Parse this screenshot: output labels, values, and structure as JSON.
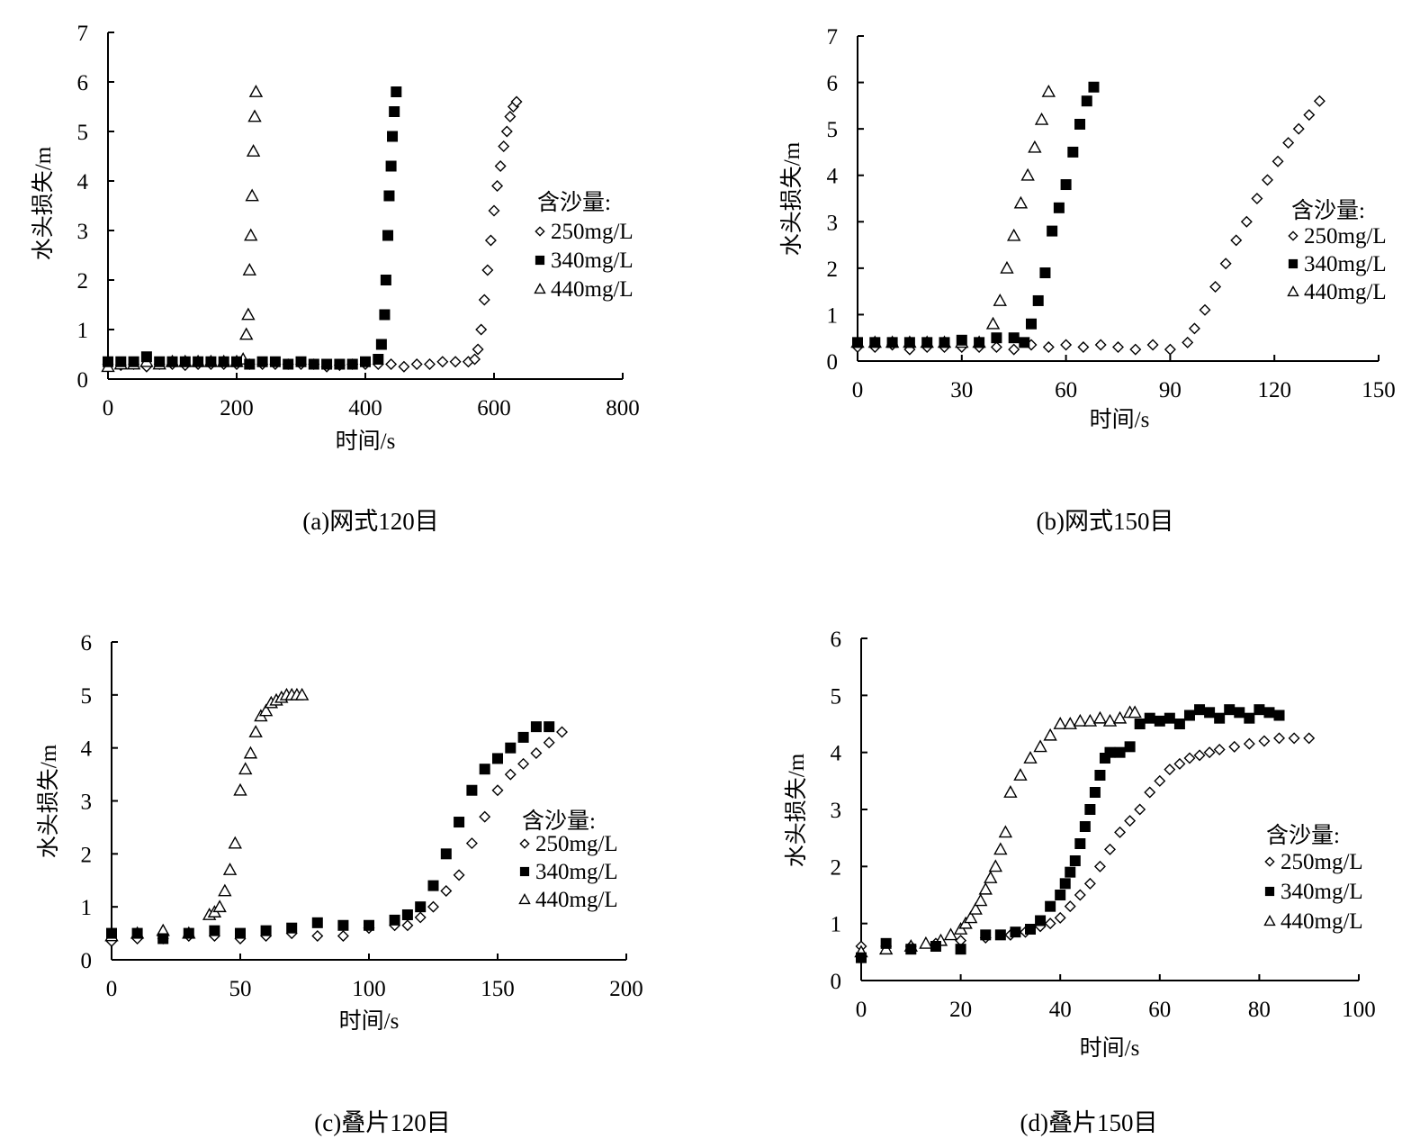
{
  "chart_data": [
    {
      "type": "scatter",
      "caption": "(a)网式120目",
      "xlabel": "时间/s",
      "ylabel": "水头损失/m",
      "xlim": [
        0,
        800
      ],
      "ylim": [
        0,
        7
      ],
      "xticks": [
        0,
        200,
        400,
        600,
        800
      ],
      "yticks": [
        0,
        1,
        2,
        3,
        4,
        5,
        6,
        7
      ],
      "grid": false,
      "legend": {
        "title": "含沙量:",
        "placement": "right"
      },
      "series": [
        {
          "name": "250mg/L",
          "marker": "diamond",
          "x": [
            0,
            20,
            40,
            60,
            80,
            100,
            120,
            140,
            160,
            180,
            200,
            220,
            240,
            260,
            280,
            300,
            320,
            340,
            360,
            380,
            400,
            420,
            440,
            460,
            480,
            500,
            520,
            540,
            560,
            570,
            575,
            580,
            585,
            590,
            595,
            600,
            605,
            610,
            615,
            620,
            625,
            630,
            635
          ],
          "y": [
            0.3,
            0.28,
            0.3,
            0.25,
            0.3,
            0.3,
            0.28,
            0.3,
            0.3,
            0.3,
            0.3,
            0.3,
            0.3,
            0.3,
            0.3,
            0.3,
            0.3,
            0.25,
            0.28,
            0.3,
            0.3,
            0.3,
            0.3,
            0.25,
            0.3,
            0.3,
            0.35,
            0.35,
            0.35,
            0.4,
            0.6,
            1.0,
            1.6,
            2.2,
            2.8,
            3.4,
            3.9,
            4.3,
            4.7,
            5.0,
            5.3,
            5.5,
            5.6
          ]
        },
        {
          "name": "340mg/L",
          "marker": "square",
          "x": [
            0,
            20,
            40,
            60,
            80,
            100,
            120,
            140,
            160,
            180,
            200,
            220,
            240,
            260,
            280,
            300,
            320,
            340,
            360,
            380,
            400,
            420,
            425,
            430,
            432,
            435,
            437,
            440,
            442,
            445,
            448
          ],
          "y": [
            0.35,
            0.35,
            0.35,
            0.45,
            0.35,
            0.35,
            0.35,
            0.35,
            0.35,
            0.35,
            0.35,
            0.3,
            0.35,
            0.35,
            0.3,
            0.35,
            0.3,
            0.3,
            0.3,
            0.3,
            0.35,
            0.4,
            0.7,
            1.3,
            2.0,
            2.9,
            3.7,
            4.3,
            4.9,
            5.4,
            5.8
          ],
          "color": "#000000"
        },
        {
          "name": "440mg/L",
          "marker": "triangle",
          "x": [
            0,
            20,
            40,
            60,
            80,
            100,
            120,
            140,
            160,
            180,
            200,
            210,
            215,
            218,
            220,
            222,
            224,
            226,
            228,
            230
          ],
          "y": [
            0.25,
            0.3,
            0.3,
            0.35,
            0.3,
            0.35,
            0.35,
            0.35,
            0.35,
            0.35,
            0.35,
            0.4,
            0.9,
            1.3,
            2.2,
            2.9,
            3.7,
            4.6,
            5.3,
            5.8
          ]
        }
      ]
    },
    {
      "type": "scatter",
      "caption": "(b)网式150目",
      "xlabel": "时间/s",
      "ylabel": "水头损失/m",
      "xlim": [
        0,
        150
      ],
      "ylim": [
        0,
        7
      ],
      "xticks": [
        0,
        30,
        60,
        90,
        120,
        150
      ],
      "yticks": [
        0,
        1,
        2,
        3,
        4,
        5,
        6,
        7
      ],
      "grid": false,
      "legend": {
        "title": "含沙量:",
        "placement": "right"
      },
      "series": [
        {
          "name": "250mg/L",
          "marker": "diamond",
          "x": [
            0,
            5,
            10,
            15,
            20,
            25,
            30,
            35,
            40,
            45,
            50,
            55,
            60,
            65,
            70,
            75,
            80,
            85,
            90,
            95,
            97,
            100,
            103,
            106,
            109,
            112,
            115,
            118,
            121,
            124,
            127,
            130,
            133
          ],
          "y": [
            0.3,
            0.3,
            0.35,
            0.25,
            0.3,
            0.3,
            0.3,
            0.3,
            0.3,
            0.25,
            0.35,
            0.3,
            0.35,
            0.3,
            0.35,
            0.3,
            0.25,
            0.35,
            0.25,
            0.4,
            0.7,
            1.1,
            1.6,
            2.1,
            2.6,
            3.0,
            3.5,
            3.9,
            4.3,
            4.7,
            5.0,
            5.3,
            5.6
          ]
        },
        {
          "name": "340mg/L",
          "marker": "square",
          "x": [
            0,
            5,
            10,
            15,
            20,
            25,
            30,
            35,
            40,
            45,
            48,
            50,
            52,
            54,
            56,
            58,
            60,
            62,
            64,
            66,
            68
          ],
          "y": [
            0.4,
            0.4,
            0.4,
            0.4,
            0.4,
            0.4,
            0.45,
            0.4,
            0.5,
            0.5,
            0.4,
            0.8,
            1.3,
            1.9,
            2.8,
            3.3,
            3.8,
            4.5,
            5.1,
            5.6,
            5.9
          ],
          "color": "#000000"
        },
        {
          "name": "440mg/L",
          "marker": "triangle",
          "x": [
            0,
            5,
            10,
            15,
            20,
            25,
            30,
            35,
            39,
            41,
            43,
            45,
            47,
            49,
            51,
            53,
            55
          ],
          "y": [
            0.4,
            0.4,
            0.4,
            0.4,
            0.4,
            0.4,
            0.4,
            0.4,
            0.8,
            1.3,
            2.0,
            2.7,
            3.4,
            4.0,
            4.6,
            5.2,
            5.8
          ]
        }
      ]
    },
    {
      "type": "scatter",
      "caption": "(c)叠片120目",
      "xlabel": "时间/s",
      "ylabel": "水头损失/m",
      "xlim": [
        0,
        200
      ],
      "ylim": [
        0,
        6
      ],
      "xticks": [
        0,
        50,
        100,
        150,
        200
      ],
      "yticks": [
        0,
        1,
        2,
        3,
        4,
        5,
        6
      ],
      "grid": false,
      "legend": {
        "title": "含沙量:",
        "placement": "right"
      },
      "series": [
        {
          "name": "250mg/L",
          "marker": "diamond",
          "x": [
            0,
            10,
            20,
            30,
            40,
            50,
            60,
            70,
            80,
            90,
            100,
            110,
            115,
            120,
            125,
            130,
            135,
            140,
            145,
            150,
            155,
            160,
            165,
            170,
            175
          ],
          "y": [
            0.35,
            0.4,
            0.4,
            0.45,
            0.45,
            0.4,
            0.45,
            0.5,
            0.45,
            0.45,
            0.6,
            0.65,
            0.65,
            0.8,
            1.0,
            1.3,
            1.6,
            2.2,
            2.7,
            3.2,
            3.5,
            3.7,
            3.9,
            4.1,
            4.3
          ]
        },
        {
          "name": "340mg/L",
          "marker": "square",
          "x": [
            0,
            10,
            20,
            30,
            40,
            50,
            60,
            70,
            80,
            90,
            100,
            110,
            115,
            120,
            125,
            130,
            135,
            140,
            145,
            150,
            155,
            160,
            165,
            170
          ],
          "y": [
            0.5,
            0.5,
            0.4,
            0.5,
            0.55,
            0.5,
            0.55,
            0.6,
            0.7,
            0.65,
            0.65,
            0.75,
            0.85,
            1.0,
            1.4,
            2.0,
            2.6,
            3.2,
            3.6,
            3.8,
            4.0,
            4.2,
            4.4,
            4.4
          ],
          "color": "#000000"
        },
        {
          "name": "440mg/L",
          "marker": "triangle",
          "x": [
            0,
            10,
            20,
            30,
            38,
            40,
            42,
            44,
            46,
            48,
            50,
            52,
            54,
            56,
            58,
            60,
            62,
            64,
            66,
            68,
            70,
            72,
            74
          ],
          "y": [
            0.45,
            0.5,
            0.55,
            0.5,
            0.85,
            0.9,
            1.0,
            1.3,
            1.7,
            2.2,
            3.2,
            3.6,
            3.9,
            4.3,
            4.6,
            4.7,
            4.85,
            4.9,
            4.95,
            5.0,
            5.0,
            5.0,
            5.0
          ]
        }
      ]
    },
    {
      "type": "scatter",
      "caption": "(d)叠片150目",
      "xlabel": "时间/s",
      "ylabel": "水头损失/m",
      "xlim": [
        0,
        100
      ],
      "ylim": [
        0,
        6
      ],
      "xticks": [
        0,
        20,
        40,
        60,
        80,
        100
      ],
      "yticks": [
        0,
        1,
        2,
        3,
        4,
        5,
        6
      ],
      "grid": false,
      "legend": {
        "title": "含沙量:",
        "placement": "right"
      },
      "series": [
        {
          "name": "250mg/L",
          "marker": "diamond",
          "x": [
            0,
            5,
            10,
            15,
            20,
            25,
            30,
            33,
            36,
            38,
            40,
            42,
            44,
            46,
            48,
            50,
            52,
            54,
            56,
            58,
            60,
            62,
            64,
            66,
            68,
            70,
            72,
            75,
            78,
            81,
            84,
            87,
            90
          ],
          "y": [
            0.6,
            0.6,
            0.6,
            0.65,
            0.7,
            0.75,
            0.8,
            0.85,
            0.95,
            1.0,
            1.1,
            1.3,
            1.5,
            1.7,
            2.0,
            2.3,
            2.6,
            2.8,
            3.0,
            3.3,
            3.5,
            3.7,
            3.8,
            3.9,
            3.95,
            4.0,
            4.05,
            4.1,
            4.15,
            4.2,
            4.25,
            4.25,
            4.25
          ]
        },
        {
          "name": "340mg/L",
          "marker": "square",
          "x": [
            0,
            5,
            10,
            15,
            20,
            25,
            28,
            31,
            34,
            36,
            38,
            40,
            41,
            42,
            43,
            44,
            45,
            46,
            47,
            48,
            49,
            50,
            52,
            54,
            56,
            58,
            60,
            62,
            64,
            66,
            68,
            70,
            72,
            74,
            76,
            78,
            80,
            82,
            84
          ],
          "y": [
            0.4,
            0.65,
            0.55,
            0.6,
            0.55,
            0.8,
            0.8,
            0.85,
            0.9,
            1.05,
            1.3,
            1.5,
            1.7,
            1.9,
            2.1,
            2.4,
            2.7,
            3.0,
            3.3,
            3.6,
            3.9,
            4.0,
            4.0,
            4.1,
            4.5,
            4.6,
            4.55,
            4.6,
            4.5,
            4.65,
            4.75,
            4.7,
            4.6,
            4.75,
            4.7,
            4.6,
            4.75,
            4.7,
            4.65
          ],
          "color": "#000000"
        },
        {
          "name": "440mg/L",
          "marker": "triangle",
          "x": [
            0,
            5,
            10,
            13,
            16,
            18,
            20,
            21,
            22,
            23,
            24,
            25,
            26,
            27,
            28,
            29,
            30,
            32,
            34,
            36,
            38,
            40,
            42,
            44,
            46,
            48,
            50,
            52,
            54,
            55
          ],
          "y": [
            0.5,
            0.55,
            0.6,
            0.65,
            0.7,
            0.8,
            0.9,
            1.0,
            1.1,
            1.25,
            1.4,
            1.6,
            1.8,
            2.0,
            2.3,
            2.6,
            3.3,
            3.6,
            3.9,
            4.1,
            4.3,
            4.5,
            4.5,
            4.55,
            4.55,
            4.6,
            4.55,
            4.6,
            4.7,
            4.7
          ]
        }
      ]
    }
  ]
}
